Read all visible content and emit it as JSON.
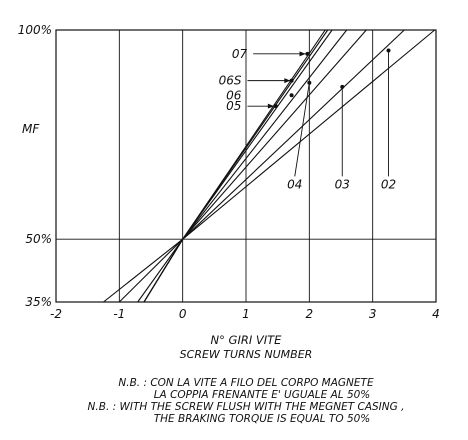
{
  "chart_data": {
    "type": "line",
    "title": "",
    "ylabel": "MF",
    "xlabel": "N° GIRI VITE",
    "xlabel_en": "SCREW TURNS NUMBER",
    "xlim": [
      -2,
      4
    ],
    "ylim": [
      35,
      100
    ],
    "x_ticks": [
      -2,
      -1,
      0,
      1,
      2,
      3,
      4
    ],
    "x_tick_labels": [
      "-2",
      "-1",
      "0",
      "1",
      "2",
      "3",
      "4"
    ],
    "y_ticks": [
      {
        "value": 35,
        "label": "35%"
      },
      {
        "value": 50,
        "label": "50%"
      },
      {
        "value": 100,
        "label": "100%"
      }
    ],
    "grid": true,
    "series": [
      {
        "name": "07",
        "x": [
          -0.61,
          0,
          2.29
        ],
        "y": [
          35,
          50,
          100
        ],
        "marker": {
          "x": 1.97,
          "y": 94.3
        }
      },
      {
        "name": "06S",
        "x": [
          -0.61,
          0,
          2.25
        ],
        "y": [
          35,
          50,
          100
        ],
        "marker": {
          "x": 1.72,
          "y": 87.9
        }
      },
      {
        "name": "06",
        "x": [
          -0.61,
          0,
          2.36
        ],
        "y": [
          35,
          50,
          100
        ],
        "marker": {
          "x": 1.72,
          "y": 84.4
        }
      },
      {
        "name": "05",
        "x": [
          -0.61,
          0,
          2.59
        ],
        "y": [
          35,
          50,
          100
        ],
        "marker": {
          "x": 1.47,
          "y": 81.8
        }
      },
      {
        "name": "04",
        "x": [
          -0.71,
          0,
          2.9
        ],
        "y": [
          35,
          50,
          100
        ],
        "marker": {
          "x": 2.0,
          "y": 87.4
        }
      },
      {
        "name": "03",
        "x": [
          -1.0,
          0,
          3.5
        ],
        "y": [
          35,
          50,
          100
        ],
        "marker": {
          "x": 2.52,
          "y": 86.4
        }
      },
      {
        "name": "02",
        "x": [
          -1.25,
          0,
          3.98
        ],
        "y": [
          35,
          50,
          100
        ],
        "marker": {
          "x": 3.25,
          "y": 95.1
        }
      }
    ],
    "label_positions_data": [
      {
        "name": "07",
        "x": 1.05,
        "y": 94.3,
        "target_x": 1.94
      },
      {
        "name": "06S",
        "x": 0.96,
        "y": 87.9,
        "target_x": 1.7
      },
      {
        "name": "06",
        "x": 0.96,
        "y": 84.4,
        "target_x": null
      },
      {
        "name": "05",
        "x": 0.96,
        "y": 81.8,
        "target_x": 1.44
      }
    ],
    "bottom_labels": [
      {
        "name": "04",
        "x": 1.77,
        "y": 65.5
      },
      {
        "name": "03",
        "x": 2.52,
        "y": 65.5
      },
      {
        "name": "02",
        "x": 3.25,
        "y": 65.5
      }
    ]
  },
  "notes": {
    "it_line1": "N.B. : CON LA VITE A FILO DEL CORPO MAGNETE",
    "it_line2": "LA COPPIA FRENANTE E' UGUALE AL 50%",
    "en_line1": "N.B. : WITH THE SCREW FLUSH WITH THE MEGNET CASING ,",
    "en_line2": "THE BRAKING TORQUE IS EQUAL TO 50%"
  }
}
